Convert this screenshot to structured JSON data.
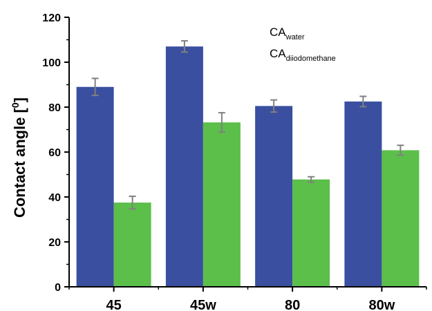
{
  "chart_data": {
    "type": "bar",
    "categories": [
      "45",
      "45w",
      "80",
      "80w"
    ],
    "series": [
      {
        "name": "CA_water",
        "name_main": "CA",
        "name_sub": "water",
        "color": "#3a4fa0",
        "values": [
          89,
          107,
          80.5,
          82.5
        ],
        "errors": [
          3.8,
          2.5,
          2.7,
          2.3
        ]
      },
      {
        "name": "CA_diiodomethane",
        "name_main": "CA",
        "name_sub": "diiodomethane",
        "color": "#5bbf4a",
        "values": [
          37.5,
          73.2,
          47.8,
          60.8
        ],
        "errors": [
          2.8,
          4.3,
          1.2,
          2.2
        ]
      }
    ],
    "ylabel": "Contact angle [°]",
    "ylabel_main": "Contact angle [",
    "ylabel_sup": "0",
    "ylabel_end": "]",
    "ylim": [
      0,
      120
    ],
    "yticks": [
      0,
      20,
      40,
      60,
      80,
      100,
      120
    ],
    "grid": false,
    "legend_position": "top-center",
    "error_bar_color": "#808080"
  }
}
